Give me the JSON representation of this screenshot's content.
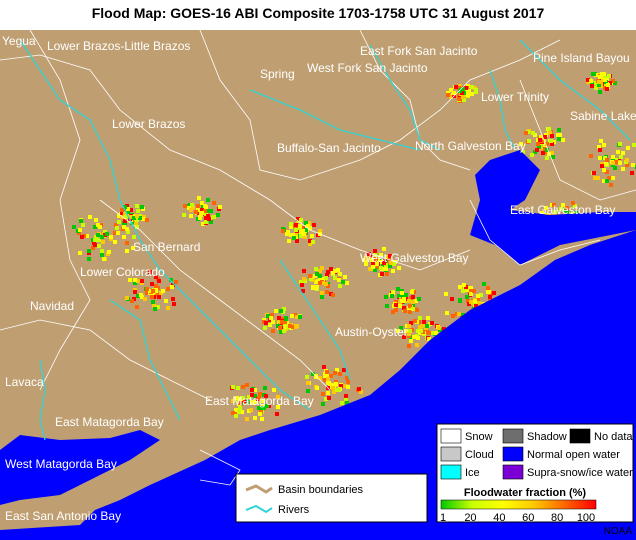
{
  "title": "Flood Map: GOES-16 ABI Composite 1703-1758 UTC 31 August 2017",
  "map": {
    "labels": [
      "Yegua",
      "Lower Brazos-Little Brazos",
      "East Fork San Jacinto",
      "Pine Island Bayou",
      "Spring",
      "West Fork San Jacinto",
      "Lower Trinity",
      "Sabine Lake",
      "Lower Brazos",
      "Buffalo-San Jacinto",
      "North Galveston Bay",
      "East Galveston Bay",
      "San Bernard",
      "West Galveston Bay",
      "Lower Colorado",
      "Navidad",
      "Austin-Oyster",
      "Lavaca",
      "East Matagorda Bay",
      "East Matagorda Bay",
      "West Matagorda Bay",
      "East San Antonio Bay"
    ]
  },
  "legend": {
    "items": [
      {
        "label": "Snow",
        "color": "#ffffff"
      },
      {
        "label": "Shadow",
        "color": "#6e6e6e"
      },
      {
        "label": "No data",
        "color": "#000000"
      },
      {
        "label": "Cloud",
        "color": "#c8c8c8"
      },
      {
        "label": "Normal open water",
        "color": "#0000ff"
      },
      {
        "label": "Ice",
        "color": "#00ffff"
      },
      {
        "label": "Supra-snow/ice water",
        "color": "#7a00d6"
      }
    ],
    "basin_boundaries": "Basin boundaries",
    "rivers": "Rivers"
  },
  "colorbar": {
    "title": "Floodwater fraction (%)",
    "ticks": [
      1,
      20,
      40,
      60,
      80,
      100
    ]
  },
  "credit": "NOAA"
}
